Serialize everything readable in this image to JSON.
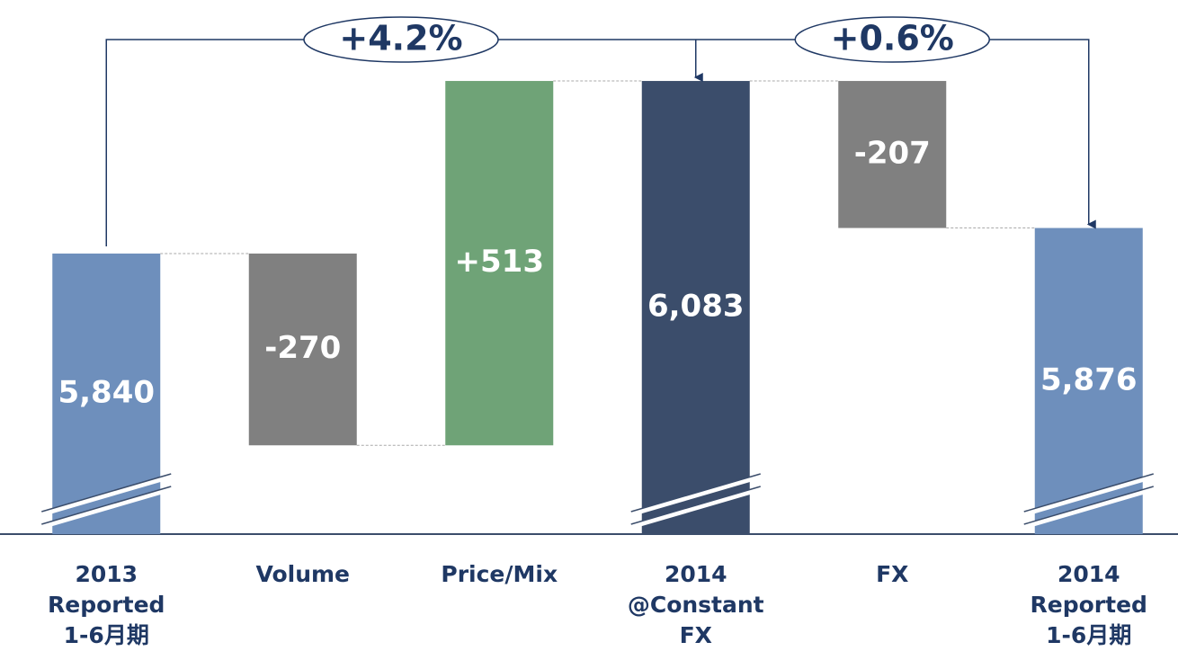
{
  "chart_data": {
    "type": "waterfall",
    "categories": [
      [
        "2013",
        "Reported",
        "1-6月期"
      ],
      [
        "Volume"
      ],
      [
        "Price/Mix"
      ],
      [
        "2014",
        "@Constant",
        "FX"
      ],
      [
        "FX"
      ],
      [
        "2014",
        "Reported",
        "1-6月期"
      ]
    ],
    "values": [
      5840,
      -270,
      513,
      6083,
      -207,
      5876
    ],
    "value_labels": [
      "5,840",
      "-270",
      "+513",
      "6,083",
      "-207",
      "5,876"
    ],
    "colors": [
      "#6e8fbc",
      "#808080",
      "#6fa377",
      "#3b4d6b",
      "#808080",
      "#6e8fbc"
    ],
    "annotations": [
      "+4.2%",
      "+0.6%"
    ],
    "ylim": [
      5445,
      6197
    ]
  }
}
